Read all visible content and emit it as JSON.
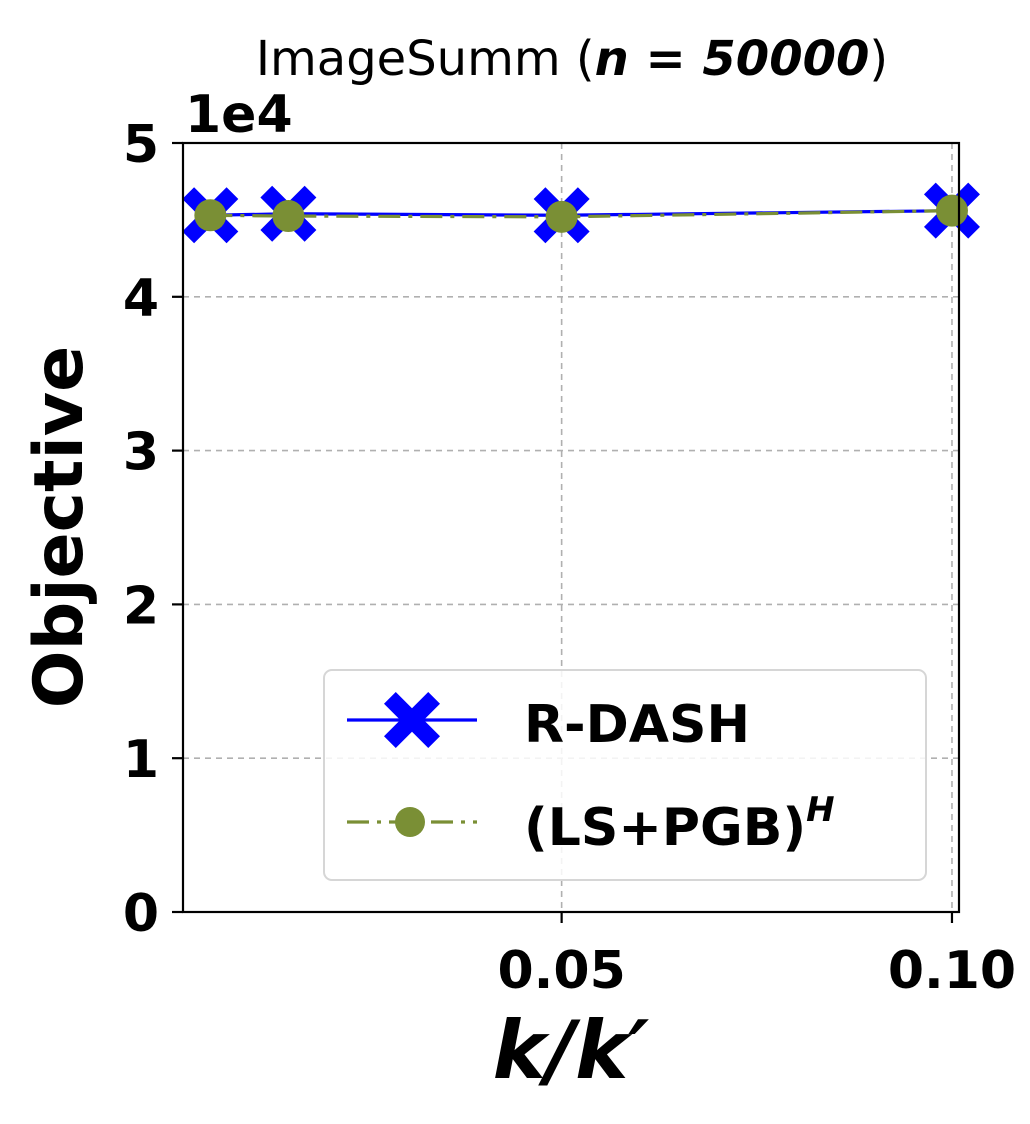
{
  "chart_data": {
    "type": "line",
    "title": {
      "prefix": "ImageSumm (",
      "math": "n = 50000",
      "suffix": ")"
    },
    "xlabel": "k/k′",
    "ylabel": "Objective",
    "y_scale_label": "1e4",
    "xlim": [
      0.0015,
      0.1009
    ],
    "ylim": [
      0,
      50000
    ],
    "x_ticks": [
      0.05,
      0.1
    ],
    "x_tick_labels": [
      "0.05",
      "0.10"
    ],
    "y_ticks": [
      0,
      10000,
      20000,
      30000,
      40000,
      50000
    ],
    "y_tick_labels": [
      "0",
      "1",
      "2",
      "3",
      "4",
      "5"
    ],
    "grid": true,
    "legend_position": "lower-right",
    "series": [
      {
        "name": "R-DASH",
        "color": "#0000ff",
        "marker": "X",
        "linestyle": "solid",
        "x": [
          0.005,
          0.015,
          0.05,
          0.1
        ],
        "y": [
          45300,
          45400,
          45300,
          45600
        ]
      },
      {
        "name": "(LS+PGB)",
        "name_superscript": "H",
        "color": "#7a8f35",
        "marker": "circle",
        "linestyle": "dashdot",
        "x": [
          0.005,
          0.015,
          0.05,
          0.1
        ],
        "y": [
          45300,
          45250,
          45200,
          45600
        ]
      }
    ]
  }
}
